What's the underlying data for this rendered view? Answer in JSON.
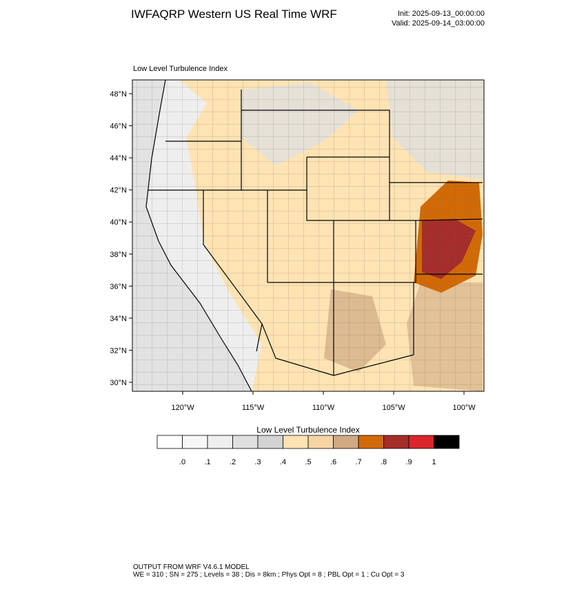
{
  "header": {
    "title": "IWFAQRP Western US Real Time WRF",
    "init": "Init: 2025-09-13_00:00:00",
    "valid": "Valid: 2025-09-14_03:00:00"
  },
  "map": {
    "subtitle": "Low Level Turbulence Index",
    "lon_range": [
      -123.58,
      -98.58
    ],
    "lat_range": [
      29.44,
      48.86
    ],
    "lat_ticks": [
      {
        "value": 30,
        "label": "30°N"
      },
      {
        "value": 32,
        "label": "32°N"
      },
      {
        "value": 34,
        "label": "34°N"
      },
      {
        "value": 36,
        "label": "36°N"
      },
      {
        "value": 38,
        "label": "38°N"
      },
      {
        "value": 40,
        "label": "40°N"
      },
      {
        "value": 42,
        "label": "42°N"
      },
      {
        "value": 44,
        "label": "44°N"
      },
      {
        "value": 46,
        "label": "46°N"
      },
      {
        "value": 48,
        "label": "48°N"
      }
    ],
    "lon_ticks": [
      {
        "value": -120,
        "label": "120°W"
      },
      {
        "value": -115,
        "label": "115°W"
      },
      {
        "value": -110,
        "label": "110°W"
      },
      {
        "value": -105,
        "label": "105°W"
      },
      {
        "value": -100,
        "label": "100°W"
      }
    ]
  },
  "colorbar": {
    "title": "Low Level Turbulence Index",
    "colors": [
      "#ffffff",
      "#f7f7f7",
      "#efefef",
      "#e0e0e0",
      "#d3d3d3",
      "#ffe3b3",
      "#f6d4a4",
      "#cfaa82",
      "#d16a06",
      "#a52d2a",
      "#d8262b",
      "#000000"
    ],
    "levels": [
      {
        "value": 0,
        "label": ".0"
      },
      {
        "value": 0.1,
        "label": ".1"
      },
      {
        "value": 0.2,
        "label": ".2"
      },
      {
        "value": 0.3,
        "label": ".3"
      },
      {
        "value": 0.4,
        "label": ".4"
      },
      {
        "value": 0.5,
        "label": ".5"
      },
      {
        "value": 0.6,
        "label": ".6"
      },
      {
        "value": 0.7,
        "label": ".7"
      },
      {
        "value": 0.8,
        "label": ".8"
      },
      {
        "value": 0.9,
        "label": ".9"
      },
      1
    ]
  },
  "footer": {
    "line1": "OUTPUT FROM WRF V4.6.1 MODEL",
    "line2": "WE = 310 ; SN = 275 ; Levels = 38 ; Dis = 8km ; Phys Opt = 8 ; PBL Opt = 1 ; Cu Opt = 3"
  }
}
